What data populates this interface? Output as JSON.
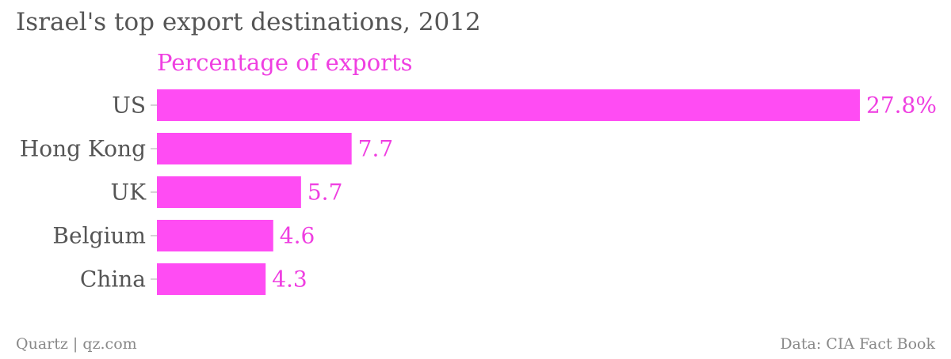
{
  "title": "Israel's top export destinations, 2012",
  "footer": {
    "credit": "Quartz | qz.com",
    "source": "Data: CIA Fact Book"
  },
  "colors": {
    "bar": "#ff4cf3",
    "label": "#ef3fe1",
    "axis_text": "#555555",
    "tick": "#aaaaaa"
  },
  "chart_data": {
    "type": "bar",
    "orientation": "horizontal",
    "title": "Israel's top export destinations, 2012",
    "series": [
      {
        "name": "Percentage of exports",
        "values": [
          27.8,
          7.7,
          5.7,
          4.6,
          4.3
        ]
      }
    ],
    "categories": [
      "US",
      "Hong Kong",
      "UK",
      "Belgium",
      "China"
    ],
    "value_labels": [
      "27.8%",
      "7.7",
      "5.7",
      "4.6",
      "4.3"
    ],
    "xlim": [
      0,
      27.8
    ],
    "grid": false,
    "legend": "top-left"
  }
}
